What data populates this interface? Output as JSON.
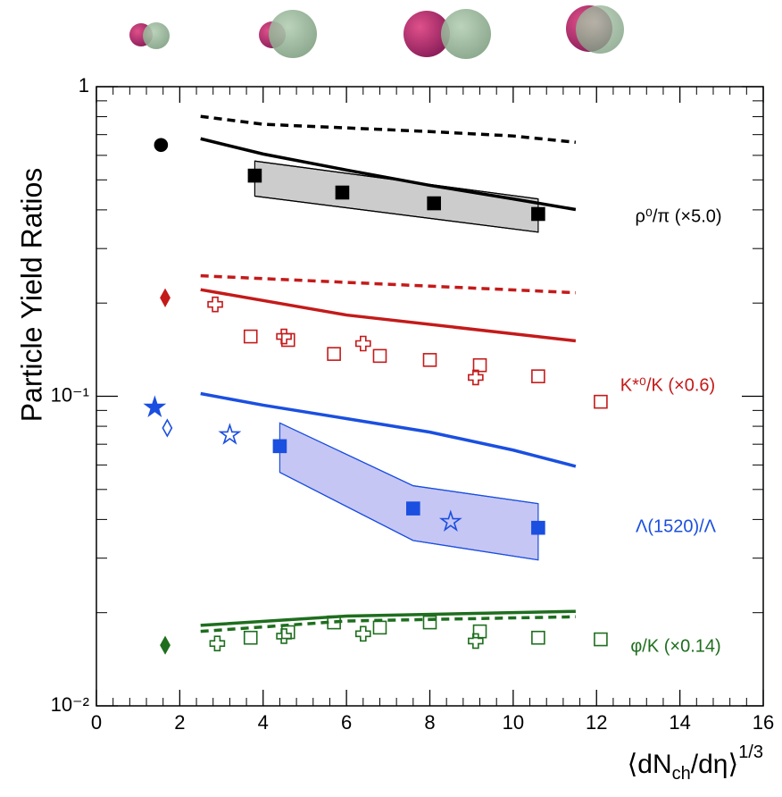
{
  "chart_data": {
    "type": "scatter",
    "ylabel": "Particle Yield Ratios",
    "xlabel": [
      "⟨dN",
      "ch",
      "/dη⟩",
      "1/3"
    ],
    "xlim": [
      0,
      16
    ],
    "xticks": [
      0,
      2,
      4,
      6,
      8,
      10,
      12,
      14,
      16
    ],
    "ylim": [
      0.01,
      1
    ],
    "yticks": [
      {
        "value": 0.01,
        "label": "10⁻²"
      },
      {
        "value": 0.1,
        "label": "10⁻¹"
      },
      1
    ],
    "log_y": true,
    "groups": [
      {
        "label": "ρ⁰/π (×5.0)",
        "color": "#000000",
        "band_fill": "#cccccc",
        "bands": [
          {
            "x": [
              3.8,
              10.6
            ],
            "upper": [
              0.575,
              0.434
            ],
            "lower": [
              0.443,
              0.339
            ]
          }
        ],
        "lines": [
          {
            "style": "solid",
            "x": [
              2.5,
              4,
              6,
              8,
              10,
              11.5
            ],
            "values": [
              0.679,
              0.606,
              0.538,
              0.48,
              0.434,
              0.401
            ]
          },
          {
            "style": "dashed",
            "x": [
              2.5,
              4,
              6,
              8,
              10,
              11.5
            ],
            "values": [
              0.802,
              0.756,
              0.736,
              0.716,
              0.693,
              0.661
            ]
          }
        ],
        "points": [
          {
            "marker": "circle",
            "filled": true,
            "x": [
              1.55
            ],
            "values": [
              0.648
            ]
          },
          {
            "marker": "square",
            "filled": true,
            "x": [
              3.8,
              5.9,
              8.1,
              10.6
            ],
            "values": [
              0.516,
              0.455,
              0.42,
              0.388
            ]
          }
        ]
      },
      {
        "label": "K*⁰/K (×0.6)",
        "color": "#c41a1a",
        "band_fill": null,
        "bands": [],
        "lines": [
          {
            "style": "solid",
            "x": [
              2.5,
              6,
              11.5
            ],
            "values": [
              0.221,
              0.183,
              0.151
            ]
          },
          {
            "style": "dashed",
            "x": [
              2.5,
              11.5
            ],
            "values": [
              0.245,
              0.216
            ]
          }
        ],
        "points": [
          {
            "marker": "diamond",
            "filled": true,
            "x": [
              1.65
            ],
            "values": [
              0.208
            ]
          },
          {
            "marker": "cross",
            "filled": false,
            "x": [
              2.85,
              4.5,
              6.4,
              9.1
            ],
            "values": [
              0.198,
              0.156,
              0.148,
              0.115
            ]
          },
          {
            "marker": "square",
            "filled": false,
            "x": [
              3.7,
              4.6,
              5.7,
              6.8,
              8,
              9.2,
              10.6,
              12.1
            ],
            "values": [
              0.156,
              0.152,
              0.137,
              0.135,
              0.131,
              0.126,
              0.116,
              0.096
            ]
          }
        ]
      },
      {
        "label": "Λ(1520)/Λ",
        "color": "#1a4fe0",
        "band_fill": "#c6c6f4",
        "bands": [
          {
            "x": [
              4.4,
              7.6,
              10.6
            ],
            "upper": [
              0.082,
              0.0514,
              0.045
            ],
            "lower": [
              0.0568,
              0.0342,
              0.0296
            ]
          }
        ],
        "lines": [
          {
            "style": "solid",
            "x": [
              2.5,
              4,
              6,
              8,
              10,
              11.5
            ],
            "values": [
              0.102,
              0.0936,
              0.0847,
              0.0766,
              0.067,
              0.0594
            ]
          }
        ],
        "points": [
          {
            "marker": "star",
            "filled": true,
            "x": [
              1.4
            ],
            "values": [
              0.092
            ]
          },
          {
            "marker": "diamond",
            "filled": false,
            "x": [
              1.7
            ],
            "values": [
              0.079
            ]
          },
          {
            "marker": "star",
            "filled": false,
            "x": [
              3.2,
              8.5
            ],
            "values": [
              0.075,
              0.0393
            ]
          },
          {
            "marker": "square",
            "filled": true,
            "x": [
              4.4,
              7.6,
              10.6
            ],
            "values": [
              0.069,
              0.0434,
              0.0376
            ]
          }
        ]
      },
      {
        "label": "φ/K (×0.14)",
        "color": "#1e6e1e",
        "band_fill": null,
        "bands": [],
        "lines": [
          {
            "style": "solid",
            "x": [
              2.5,
              6,
              11.5
            ],
            "values": [
              0.0182,
              0.0195,
              0.0202
            ]
          },
          {
            "style": "dashed",
            "x": [
              2.5,
              6,
              11.5
            ],
            "values": [
              0.0174,
              0.0188,
              0.0194
            ]
          }
        ],
        "points": [
          {
            "marker": "diamond",
            "filled": true,
            "x": [
              1.65
            ],
            "values": [
              0.0157
            ]
          },
          {
            "marker": "cross",
            "filled": false,
            "x": [
              2.9,
              4.5,
              6.4,
              9.1
            ],
            "values": [
              0.0159,
              0.0168,
              0.0171,
              0.0162
            ]
          },
          {
            "marker": "square",
            "filled": false,
            "x": [
              3.7,
              4.6,
              5.7,
              6.8,
              8,
              9.2,
              10.6,
              12.1
            ],
            "values": [
              0.0166,
              0.0173,
              0.0186,
              0.0179,
              0.0186,
              0.0174,
              0.0166,
              0.0164
            ]
          }
        ]
      }
    ]
  }
}
